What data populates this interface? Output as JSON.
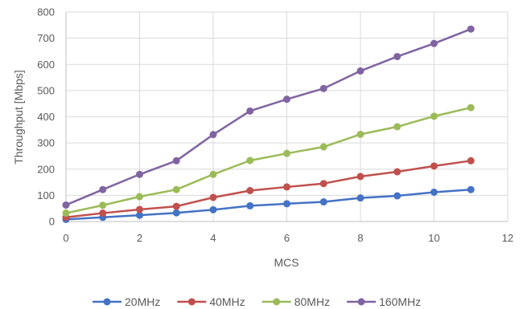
{
  "chart_data": {
    "type": "line",
    "title": "",
    "xlabel": "MCS",
    "ylabel": "Throughput [Mbps]",
    "xlim": [
      0,
      12
    ],
    "ylim": [
      0,
      800
    ],
    "x_ticks": [
      0,
      2,
      4,
      6,
      8,
      10,
      12
    ],
    "y_ticks": [
      0,
      100,
      200,
      300,
      400,
      500,
      600,
      700,
      800
    ],
    "grid": true,
    "legend_position": "bottom",
    "x": [
      0,
      1,
      2,
      3,
      4,
      5,
      6,
      7,
      8,
      9,
      10,
      11
    ],
    "series": [
      {
        "name": "20MHz",
        "color": "#4472c4",
        "values": [
          8,
          16,
          24,
          33,
          45,
          60,
          68,
          75,
          90,
          98,
          112,
          122
        ]
      },
      {
        "name": "40MHz",
        "color": "#c0504d",
        "values": [
          16,
          32,
          46,
          58,
          92,
          118,
          132,
          145,
          172,
          190,
          212,
          232
        ]
      },
      {
        "name": "80MHz",
        "color": "#9bbb59",
        "values": [
          32,
          62,
          95,
          122,
          180,
          233,
          260,
          285,
          333,
          362,
          402,
          435
        ]
      },
      {
        "name": "160MHz",
        "color": "#8064a2",
        "values": [
          63,
          122,
          180,
          232,
          332,
          422,
          467,
          508,
          575,
          630,
          680,
          735
        ]
      }
    ]
  }
}
